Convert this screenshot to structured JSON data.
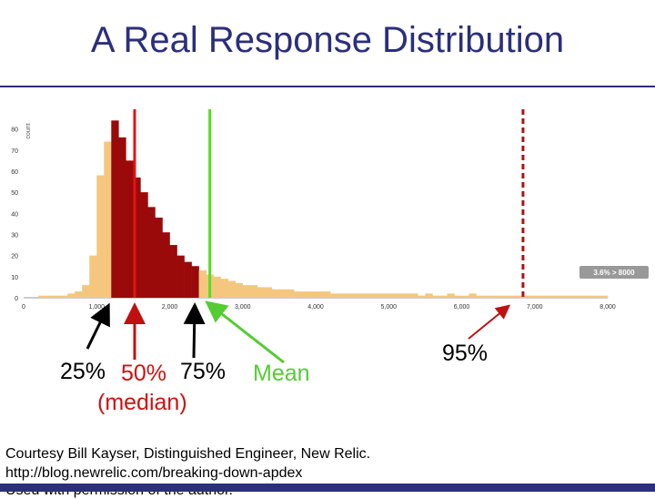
{
  "slide": {
    "title": "A Real Response Distribution",
    "credit_line1": "Courtesy Bill Kayser, Distinguished Engineer, New Relic.",
    "credit_line2": "http://blog.newrelic.com/breaking-down-apdex",
    "credit_line3": "Used with permission of the author."
  },
  "annotations": {
    "p25": "25%",
    "p50": "50%",
    "p75": "75%",
    "mean": "Mean",
    "median": "(median)",
    "p95": "95%"
  },
  "colors": {
    "title": "#2b2f7c",
    "histogram": "#f5c77e",
    "quartile_band": "#9b0a0a",
    "median_line": "#e01515",
    "mean_line": "#55dd22",
    "p95_line": "#b01010",
    "arrow_black": "#000000",
    "arrow_red": "#c01010",
    "arrow_green": "#55cc33"
  },
  "chart_data": {
    "type": "bar",
    "ylabel": "count",
    "ylim": [
      0,
      85
    ],
    "yticks": [
      0,
      10,
      20,
      30,
      40,
      50,
      60,
      70,
      80
    ],
    "xlim": [
      0,
      8000
    ],
    "xtick_labels": [
      "0",
      "1,000",
      "2,000",
      "3,000",
      "4,000",
      "5,000",
      "6,000",
      "7,000",
      "8,000"
    ],
    "xticks": [
      0,
      1000,
      2000,
      3000,
      4000,
      5000,
      6000,
      7000,
      8000
    ],
    "bin_width": 100,
    "bins": [
      {
        "x": 200,
        "count": 1
      },
      {
        "x": 300,
        "count": 1
      },
      {
        "x": 400,
        "count": 1
      },
      {
        "x": 500,
        "count": 1
      },
      {
        "x": 600,
        "count": 2
      },
      {
        "x": 700,
        "count": 3
      },
      {
        "x": 800,
        "count": 6
      },
      {
        "x": 900,
        "count": 20
      },
      {
        "x": 1000,
        "count": 58
      },
      {
        "x": 1100,
        "count": 74
      },
      {
        "x": 1200,
        "count": 84
      },
      {
        "x": 1300,
        "count": 76
      },
      {
        "x": 1400,
        "count": 65
      },
      {
        "x": 1500,
        "count": 57
      },
      {
        "x": 1600,
        "count": 50
      },
      {
        "x": 1700,
        "count": 43
      },
      {
        "x": 1800,
        "count": 38
      },
      {
        "x": 1900,
        "count": 31
      },
      {
        "x": 2000,
        "count": 25
      },
      {
        "x": 2100,
        "count": 20
      },
      {
        "x": 2200,
        "count": 17
      },
      {
        "x": 2300,
        "count": 15
      },
      {
        "x": 2400,
        "count": 13
      },
      {
        "x": 2500,
        "count": 11
      },
      {
        "x": 2600,
        "count": 10
      },
      {
        "x": 2700,
        "count": 9
      },
      {
        "x": 2800,
        "count": 8
      },
      {
        "x": 2900,
        "count": 7
      },
      {
        "x": 3000,
        "count": 6
      },
      {
        "x": 3100,
        "count": 6
      },
      {
        "x": 3200,
        "count": 5
      },
      {
        "x": 3300,
        "count": 5
      },
      {
        "x": 3400,
        "count": 4
      },
      {
        "x": 3500,
        "count": 4
      },
      {
        "x": 3600,
        "count": 4
      },
      {
        "x": 3700,
        "count": 3
      },
      {
        "x": 3800,
        "count": 3
      },
      {
        "x": 3900,
        "count": 3
      },
      {
        "x": 4000,
        "count": 3
      },
      {
        "x": 4100,
        "count": 3
      },
      {
        "x": 4200,
        "count": 2
      },
      {
        "x": 4300,
        "count": 2
      },
      {
        "x": 4400,
        "count": 2
      },
      {
        "x": 4500,
        "count": 2
      },
      {
        "x": 4600,
        "count": 2
      },
      {
        "x": 4700,
        "count": 2
      },
      {
        "x": 4800,
        "count": 2
      },
      {
        "x": 4900,
        "count": 2
      },
      {
        "x": 5000,
        "count": 2
      },
      {
        "x": 5100,
        "count": 2
      },
      {
        "x": 5200,
        "count": 2
      },
      {
        "x": 5300,
        "count": 2
      },
      {
        "x": 5400,
        "count": 1
      },
      {
        "x": 5500,
        "count": 2
      },
      {
        "x": 5600,
        "count": 1
      },
      {
        "x": 5700,
        "count": 1
      },
      {
        "x": 5800,
        "count": 2
      },
      {
        "x": 5900,
        "count": 1
      },
      {
        "x": 6000,
        "count": 1
      },
      {
        "x": 6100,
        "count": 2
      },
      {
        "x": 6200,
        "count": 1
      },
      {
        "x": 6300,
        "count": 1
      },
      {
        "x": 6400,
        "count": 1
      },
      {
        "x": 6500,
        "count": 1
      },
      {
        "x": 6600,
        "count": 1
      },
      {
        "x": 6700,
        "count": 1
      },
      {
        "x": 6800,
        "count": 1
      },
      {
        "x": 6900,
        "count": 1
      },
      {
        "x": 7000,
        "count": 1
      },
      {
        "x": 7100,
        "count": 1
      },
      {
        "x": 7200,
        "count": 1
      },
      {
        "x": 7300,
        "count": 1
      },
      {
        "x": 7400,
        "count": 1
      },
      {
        "x": 7500,
        "count": 1
      },
      {
        "x": 7600,
        "count": 1
      },
      {
        "x": 7700,
        "count": 1
      },
      {
        "x": 7800,
        "count": 1
      },
      {
        "x": 7900,
        "count": 1
      }
    ],
    "quartile_band": [
      1200,
      2400
    ],
    "markers": [
      {
        "name": "median",
        "x": 1520,
        "style": "solid"
      },
      {
        "name": "mean",
        "x": 2550,
        "style": "solid"
      },
      {
        "name": "p95",
        "x": 6840,
        "style": "dashed"
      }
    ],
    "overflow_badge": "3.6% > 8000"
  }
}
